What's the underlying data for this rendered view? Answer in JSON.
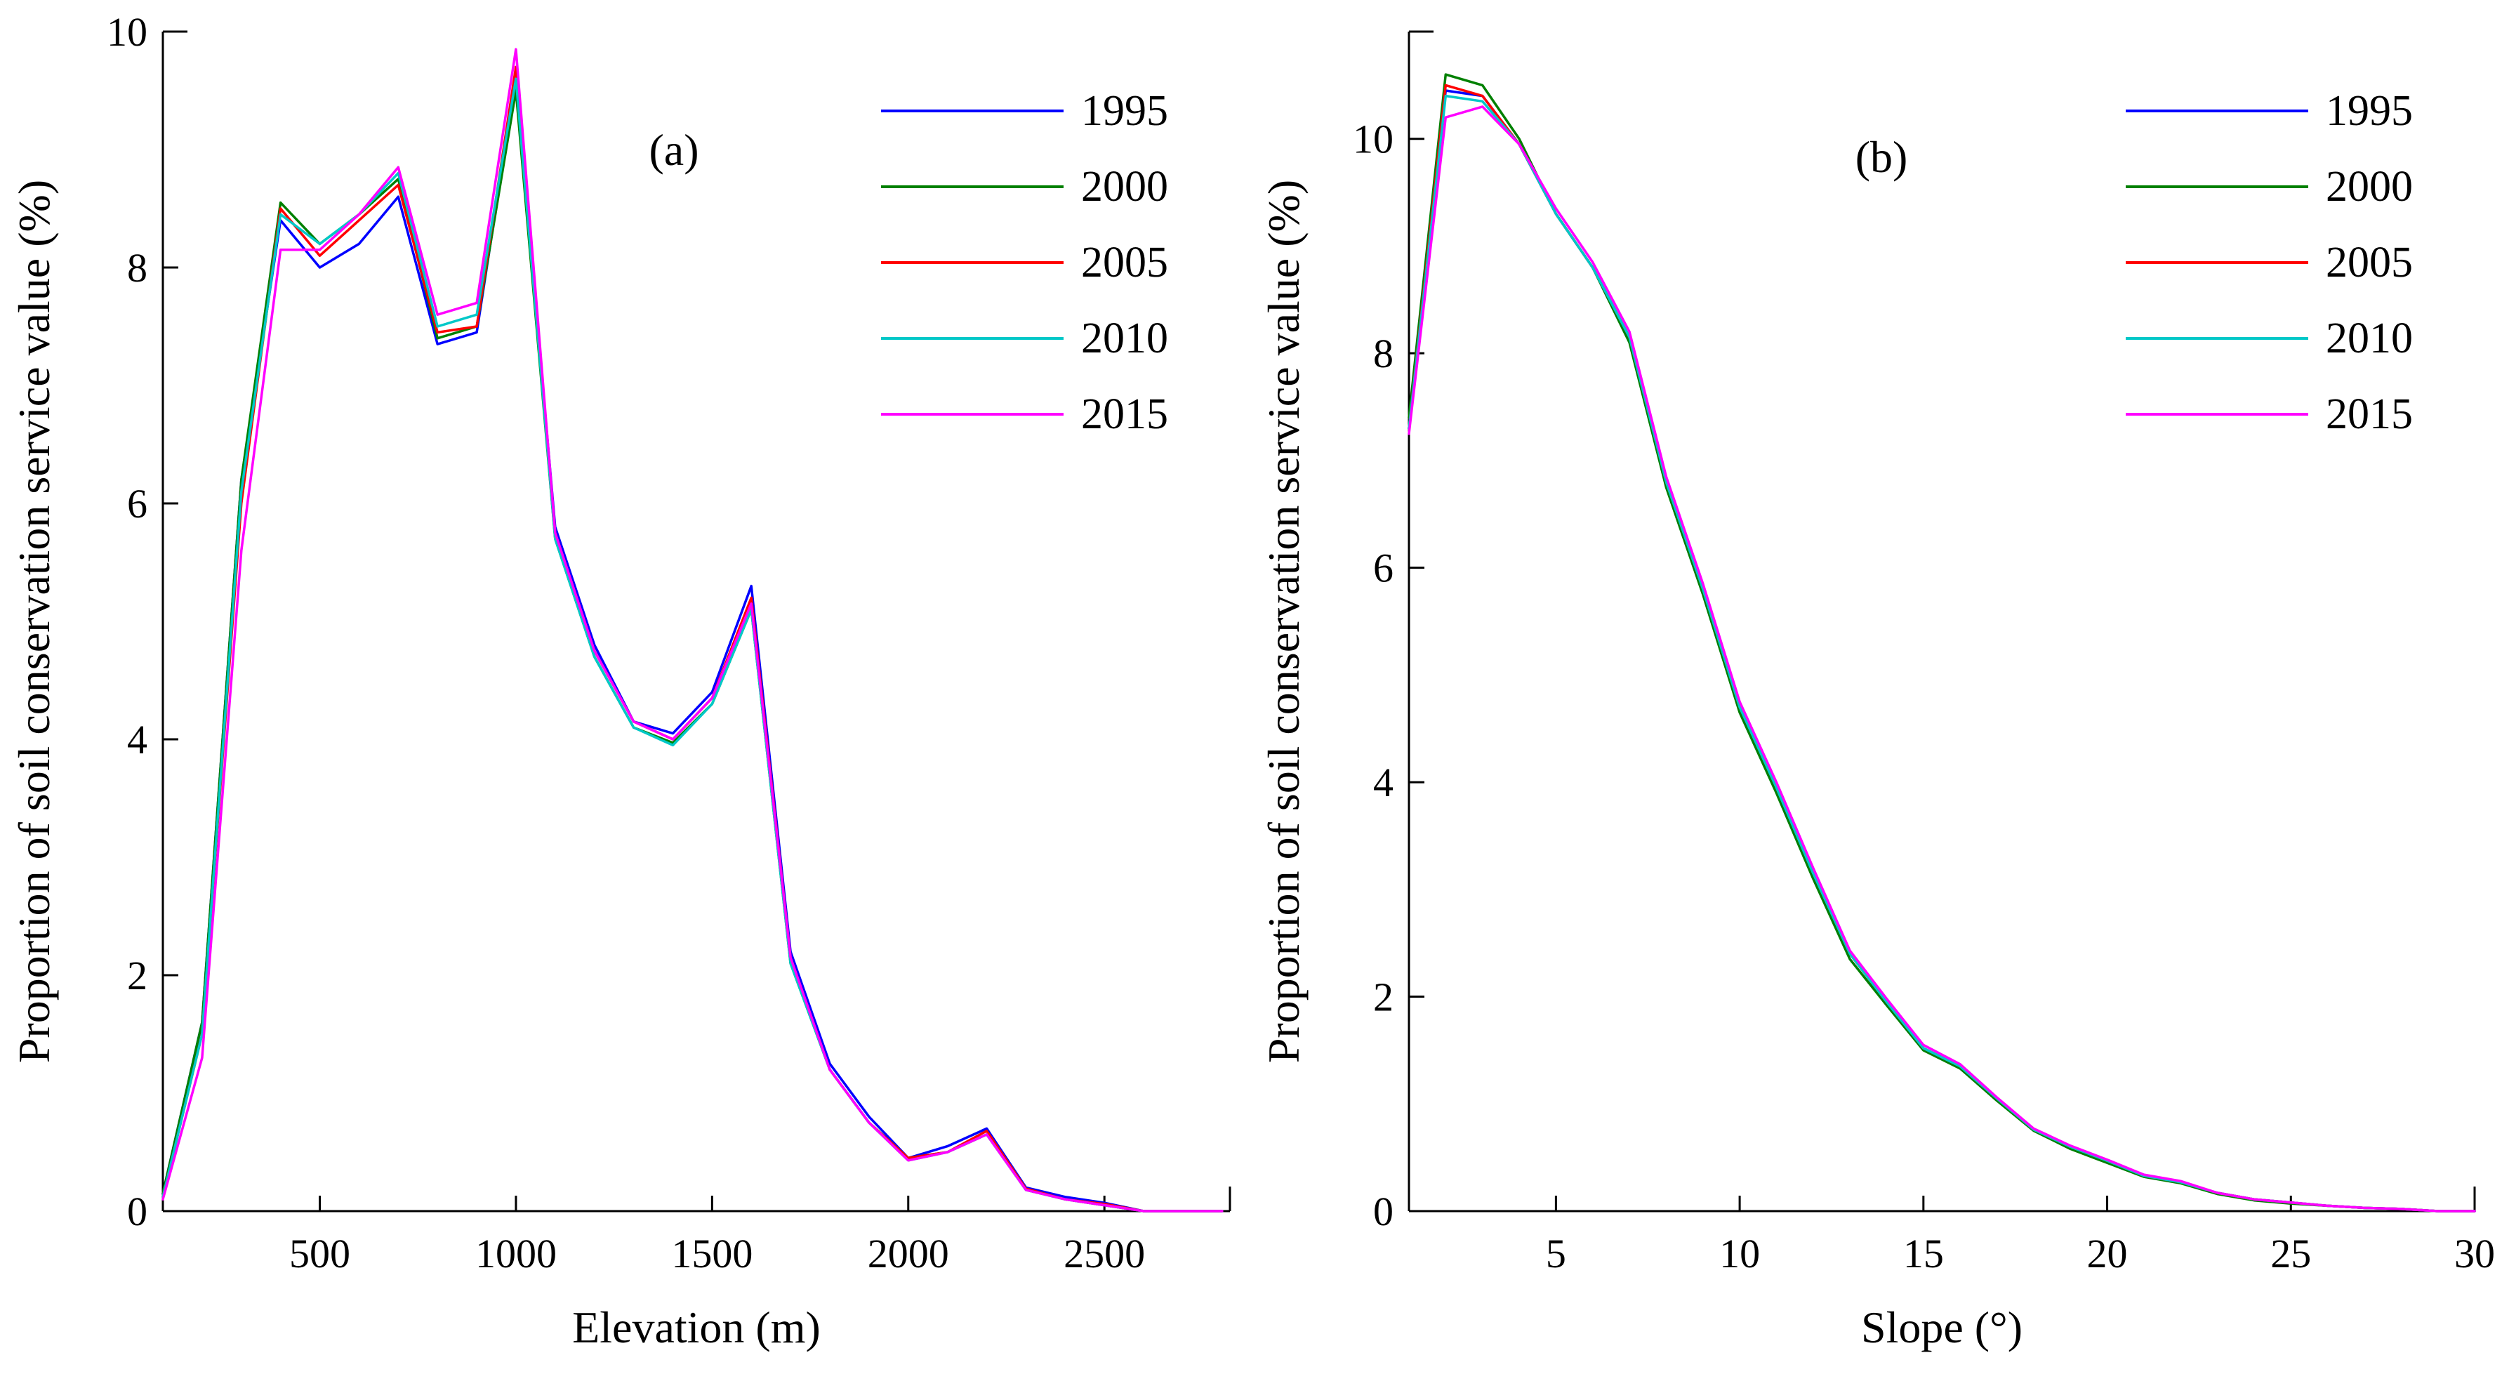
{
  "colors": {
    "1995": "#0000ff",
    "2000": "#008000",
    "2005": "#ff0000",
    "2010": "#00c8c8",
    "2015": "#ff00ff"
  },
  "chart_data": [
    {
      "type": "line",
      "panel_label": "(a)",
      "xlabel": "Elevation (m)",
      "ylabel": "Proportion of soil conservation service value (%)",
      "xlim": [
        100,
        2820
      ],
      "ylim": [
        0,
        10
      ],
      "xticks": [
        500,
        1000,
        1500,
        2000,
        2500
      ],
      "xtick_labels": [
        "500",
        "1000",
        "1500",
        "2000",
        "2500"
      ],
      "yticks": [
        0,
        2,
        4,
        6,
        8,
        10
      ],
      "ytick_labels": [
        "0",
        "2",
        "4",
        "6",
        "8",
        "10"
      ],
      "legend_position": "top-right",
      "x": [
        100,
        200,
        300,
        400,
        500,
        600,
        700,
        800,
        900,
        1000,
        1100,
        1200,
        1300,
        1400,
        1500,
        1600,
        1700,
        1800,
        1900,
        2000,
        2100,
        2200,
        2300,
        2400,
        2500,
        2600,
        2700,
        2800
      ],
      "series": [
        {
          "name": "1995",
          "values": [
            0.15,
            1.6,
            6.2,
            8.4,
            8.0,
            8.2,
            8.6,
            7.35,
            7.45,
            9.6,
            5.8,
            4.8,
            4.15,
            4.05,
            4.4,
            5.3,
            2.2,
            1.25,
            0.8,
            0.45,
            0.55,
            0.7,
            0.2,
            0.12,
            0.07,
            0.0,
            0.0,
            0.0
          ]
        },
        {
          "name": "2000",
          "values": [
            0.15,
            1.6,
            6.2,
            8.55,
            8.2,
            8.45,
            8.75,
            7.4,
            7.5,
            9.5,
            5.7,
            4.7,
            4.1,
            3.97,
            4.3,
            5.1,
            2.1,
            1.2,
            0.75,
            0.45,
            0.5,
            0.65,
            0.18,
            0.1,
            0.05,
            0.0,
            0.0,
            0.0
          ]
        },
        {
          "name": "2005",
          "values": [
            0.12,
            1.5,
            6.0,
            8.5,
            8.1,
            8.4,
            8.7,
            7.45,
            7.5,
            9.7,
            5.75,
            4.75,
            4.15,
            4.0,
            4.35,
            5.2,
            2.15,
            1.2,
            0.75,
            0.45,
            0.5,
            0.68,
            0.19,
            0.1,
            0.06,
            0.0,
            0.0,
            0.0
          ]
        },
        {
          "name": "2010",
          "values": [
            0.12,
            1.5,
            6.1,
            8.45,
            8.2,
            8.45,
            8.8,
            7.5,
            7.6,
            9.6,
            5.7,
            4.7,
            4.1,
            3.95,
            4.3,
            5.1,
            2.1,
            1.2,
            0.75,
            0.43,
            0.5,
            0.65,
            0.18,
            0.1,
            0.05,
            0.0,
            0.0,
            0.0
          ]
        },
        {
          "name": "2015",
          "values": [
            0.1,
            1.3,
            5.6,
            8.15,
            8.15,
            8.45,
            8.85,
            7.6,
            7.7,
            9.85,
            5.75,
            4.75,
            4.15,
            4.0,
            4.35,
            5.15,
            2.15,
            1.2,
            0.75,
            0.43,
            0.5,
            0.65,
            0.18,
            0.1,
            0.05,
            0.0,
            0.0,
            0.0
          ]
        }
      ]
    },
    {
      "type": "line",
      "panel_label": "(b)",
      "xlabel": "Slope (°)",
      "ylabel": "Proportion of soil conservation service value (%)",
      "xlim": [
        1,
        30
      ],
      "ylim": [
        0,
        11
      ],
      "xticks": [
        5,
        10,
        15,
        20,
        25,
        30
      ],
      "xtick_labels": [
        "5",
        "10",
        "15",
        "20",
        "25",
        "30"
      ],
      "yticks": [
        0,
        2,
        4,
        6,
        8,
        10
      ],
      "ytick_labels": [
        "0",
        "2",
        "4",
        "6",
        "8",
        "10"
      ],
      "legend_position": "top-right",
      "x": [
        1,
        2,
        3,
        4,
        5,
        6,
        7,
        8,
        9,
        10,
        11,
        12,
        13,
        14,
        15,
        16,
        17,
        18,
        19,
        20,
        21,
        22,
        23,
        24,
        25,
        26,
        27,
        28,
        29,
        30
      ],
      "series": [
        {
          "name": "1995",
          "values": [
            7.3,
            10.45,
            10.4,
            9.95,
            9.3,
            8.8,
            8.15,
            6.8,
            5.8,
            4.7,
            3.95,
            3.15,
            2.4,
            1.95,
            1.52,
            1.35,
            1.05,
            0.76,
            0.6,
            0.47,
            0.33,
            0.27,
            0.17,
            0.11,
            0.08,
            0.05,
            0.03,
            0.02,
            0.0,
            0.0
          ]
        },
        {
          "name": "2000",
          "values": [
            7.4,
            10.6,
            10.5,
            10.0,
            9.3,
            8.8,
            8.1,
            6.75,
            5.75,
            4.65,
            3.9,
            3.1,
            2.35,
            1.92,
            1.5,
            1.33,
            1.03,
            0.75,
            0.58,
            0.45,
            0.32,
            0.26,
            0.16,
            0.1,
            0.07,
            0.05,
            0.03,
            0.02,
            0.0,
            0.0
          ]
        },
        {
          "name": "2005",
          "values": [
            7.3,
            10.5,
            10.4,
            9.95,
            9.3,
            8.8,
            8.15,
            6.8,
            5.8,
            4.7,
            3.95,
            3.15,
            2.4,
            1.95,
            1.52,
            1.35,
            1.05,
            0.76,
            0.6,
            0.47,
            0.33,
            0.27,
            0.17,
            0.11,
            0.08,
            0.05,
            0.03,
            0.02,
            0.0,
            0.0
          ]
        },
        {
          "name": "2010",
          "values": [
            7.3,
            10.4,
            10.35,
            9.95,
            9.3,
            8.8,
            8.15,
            6.8,
            5.8,
            4.7,
            3.95,
            3.15,
            2.4,
            1.95,
            1.52,
            1.35,
            1.05,
            0.76,
            0.6,
            0.47,
            0.33,
            0.27,
            0.17,
            0.11,
            0.08,
            0.05,
            0.03,
            0.02,
            0.0,
            0.0
          ]
        },
        {
          "name": "2015",
          "values": [
            7.25,
            10.2,
            10.3,
            9.95,
            9.35,
            8.85,
            8.2,
            6.85,
            5.85,
            4.75,
            4.0,
            3.2,
            2.43,
            1.98,
            1.55,
            1.37,
            1.06,
            0.77,
            0.61,
            0.48,
            0.34,
            0.28,
            0.17,
            0.11,
            0.08,
            0.05,
            0.03,
            0.02,
            0.0,
            0.0
          ]
        }
      ]
    }
  ]
}
